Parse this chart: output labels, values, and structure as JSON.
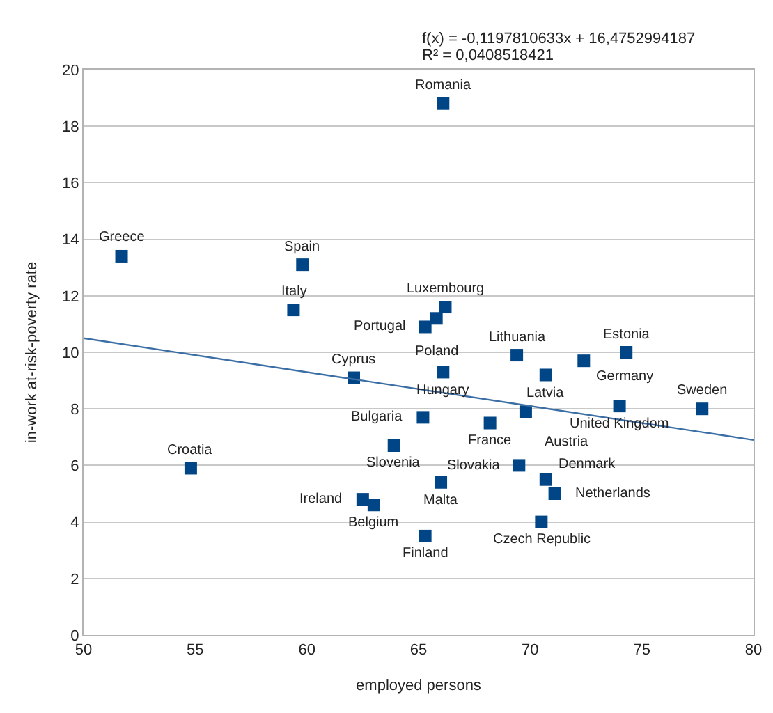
{
  "chart_data": {
    "type": "scatter",
    "xlabel": "employed persons",
    "ylabel": "in-work at-risk-poverty rate",
    "xlim": [
      50,
      80
    ],
    "xticks": [
      50,
      55,
      60,
      65,
      70,
      75,
      80
    ],
    "ylim": [
      0,
      20
    ],
    "yticks": [
      0,
      2,
      4,
      6,
      8,
      10,
      12,
      14,
      16,
      18,
      20
    ],
    "grid": "y",
    "marker": "square",
    "series": [
      {
        "color": "#004586",
        "x": [
          66.1,
          51.7,
          59.8,
          59.4,
          66.2,
          65.8,
          65.3,
          62.1,
          66.1,
          69.4,
          70.7,
          72.4,
          74.3,
          74.0,
          77.7,
          65.2,
          68.2,
          69.8,
          63.9,
          69.5,
          70.7,
          71.1,
          66.0,
          70.5,
          65.3,
          54.8,
          62.5,
          63.0
        ],
        "values": [
          18.8,
          13.4,
          13.1,
          11.5,
          11.6,
          11.2,
          10.9,
          9.1,
          9.3,
          9.9,
          9.2,
          9.7,
          10.0,
          8.1,
          8.0,
          7.7,
          7.5,
          7.9,
          6.7,
          6.0,
          5.5,
          5.0,
          5.4,
          4.0,
          3.5,
          5.9,
          4.8,
          4.6
        ]
      },
      {
        "type": "line",
        "color": "#3a6ea5",
        "marker": "none",
        "x": [
          50,
          80
        ],
        "values": [
          10.5,
          6.9
        ]
      }
    ],
    "annotations": [
      "f(x) = -0,1197810633x + 16,4752994187",
      "R² = 0,0408518421",
      {
        "text": "Romania",
        "x": 66.1,
        "y": 18.8
      },
      {
        "text": "Greece",
        "x": 51.7,
        "y": 13.4
      },
      {
        "text": "Spain",
        "x": 59.8,
        "y": 13.1
      },
      {
        "text": "Italy",
        "x": 59.4,
        "y": 11.5
      },
      {
        "text": "Luxembourg",
        "x": 66.2,
        "y": 11.6
      },
      {
        "text": "Poland",
        "x": 65.8,
        "y": 11.2
      },
      {
        "text": "Portugal",
        "x": 65.3,
        "y": 10.9
      },
      {
        "text": "Cyprus",
        "x": 62.1,
        "y": 9.1
      },
      {
        "text": "Hungary",
        "x": 66.1,
        "y": 9.3
      },
      {
        "text": "Lithuania",
        "x": 69.4,
        "y": 9.9
      },
      {
        "text": "Latvia",
        "x": 70.7,
        "y": 9.2
      },
      {
        "text": "Germany",
        "x": 72.4,
        "y": 9.7
      },
      {
        "text": "Estonia",
        "x": 74.3,
        "y": 10.0
      },
      {
        "text": "United Kingdom",
        "x": 74.0,
        "y": 8.1
      },
      {
        "text": "Sweden",
        "x": 77.7,
        "y": 8.0
      },
      {
        "text": "Bulgaria",
        "x": 65.2,
        "y": 7.7
      },
      {
        "text": "France",
        "x": 68.2,
        "y": 7.5
      },
      {
        "text": "Austria",
        "x": 69.8,
        "y": 7.9
      },
      {
        "text": "Slovenia",
        "x": 63.9,
        "y": 6.7
      },
      {
        "text": "Slovakia",
        "x": 69.5,
        "y": 6.0
      },
      {
        "text": "Denmark",
        "x": 70.7,
        "y": 5.5
      },
      {
        "text": "Netherlands",
        "x": 71.1,
        "y": 5.0
      },
      {
        "text": "Malta",
        "x": 66.0,
        "y": 5.4
      },
      {
        "text": "Czech Republic",
        "x": 70.5,
        "y": 4.0
      },
      {
        "text": "Finland",
        "x": 65.3,
        "y": 3.5
      },
      {
        "text": "Croatia",
        "x": 54.8,
        "y": 5.9
      },
      {
        "text": "Ireland",
        "x": 62.5,
        "y": 4.8
      },
      {
        "text": "Belgium",
        "x": 63.0,
        "y": 4.6
      }
    ]
  }
}
